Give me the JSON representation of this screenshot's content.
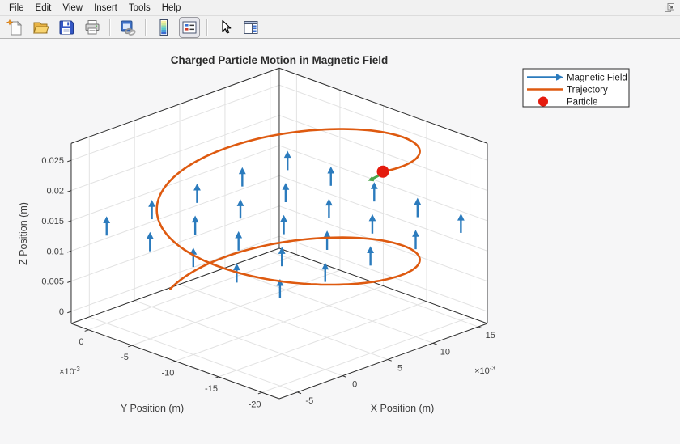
{
  "window": {
    "menu_items": [
      "File",
      "Edit",
      "View",
      "Insert",
      "Tools",
      "Help"
    ]
  },
  "toolbar": {
    "buttons": [
      {
        "label": "New Figure"
      },
      {
        "label": "Open"
      },
      {
        "label": "Save"
      },
      {
        "label": "Print"
      },
      {
        "label": "Link Plot"
      },
      {
        "label": "Insert Colorbar"
      },
      {
        "label": "Insert Legend",
        "active": true
      },
      {
        "label": "Edit Plot"
      },
      {
        "label": "Property Editor"
      }
    ]
  },
  "figure": {
    "title": "Charged Particle Motion in Magnetic Field",
    "legend": {
      "items": [
        {
          "label": "Magnetic Field",
          "marker": "arrow",
          "color": "#2b7bbd"
        },
        {
          "label": "Trajectory",
          "marker": "line",
          "color": "#de5a10"
        },
        {
          "label": "Particle",
          "marker": "dot",
          "color": "#e41b0e"
        }
      ]
    }
  },
  "chart_data": {
    "type": "line",
    "subtype": "3d-helix-with-quiver",
    "title": "Charged Particle Motion in Magnetic Field",
    "xlabel": "X Position (m)",
    "ylabel": "Y Position (m)",
    "zlabel": "Z Position (m)",
    "xlim": [
      -0.007,
      0.016
    ],
    "ylim": [
      -0.022,
      0.002
    ],
    "zlim": [
      -0.002,
      0.0278
    ],
    "axes": {
      "x": {
        "label": "X Position (m)",
        "ticks": [
          "-5",
          "0",
          "5",
          "10",
          "15"
        ],
        "tick_scale": 0.001,
        "multiplier_base": "×10",
        "multiplier_exp": "-3"
      },
      "y": {
        "label": "Y Position (m)",
        "ticks": [
          "0",
          "-5",
          "-10",
          "-15",
          "-20"
        ],
        "tick_scale": 0.001,
        "multiplier_base": "×10",
        "multiplier_exp": "-3"
      },
      "z": {
        "label": "Z Position (m)",
        "ticks": [
          "0",
          "0.005",
          "0.01",
          "0.015",
          "0.02",
          "0.025"
        ],
        "tick_scale": 1
      }
    },
    "grid": true,
    "legend_position": "top-right-outside",
    "series": [
      {
        "name": "Magnetic Field",
        "plot": "quiver3",
        "color": "#2b7bbd",
        "x": [
          -0.005,
          0,
          0.005,
          0.01,
          0.015
        ],
        "y": [
          -0.02,
          -0.015,
          -0.01,
          -0.005,
          0
        ],
        "z_base": 0.0125,
        "dz": 0.0032,
        "direction": [
          0,
          0,
          1
        ]
      },
      {
        "name": "Trajectory",
        "plot": "line3",
        "color": "#de5a10",
        "helix": {
          "center_x": 0.0055,
          "center_y": -0.01,
          "radius": 0.0105,
          "theta_start_deg": 110,
          "theta_sweep_deg": -558,
          "z_start": 0,
          "z_end": 0.0278
        }
      },
      {
        "name": "Particle",
        "plot": "scatter3",
        "color": "#e41b0e",
        "x": 0.0059,
        "y": -0.0205,
        "z": 0.0278
      },
      {
        "name": "Velocity",
        "plot": "vector",
        "color": "#4ca64c"
      }
    ]
  }
}
